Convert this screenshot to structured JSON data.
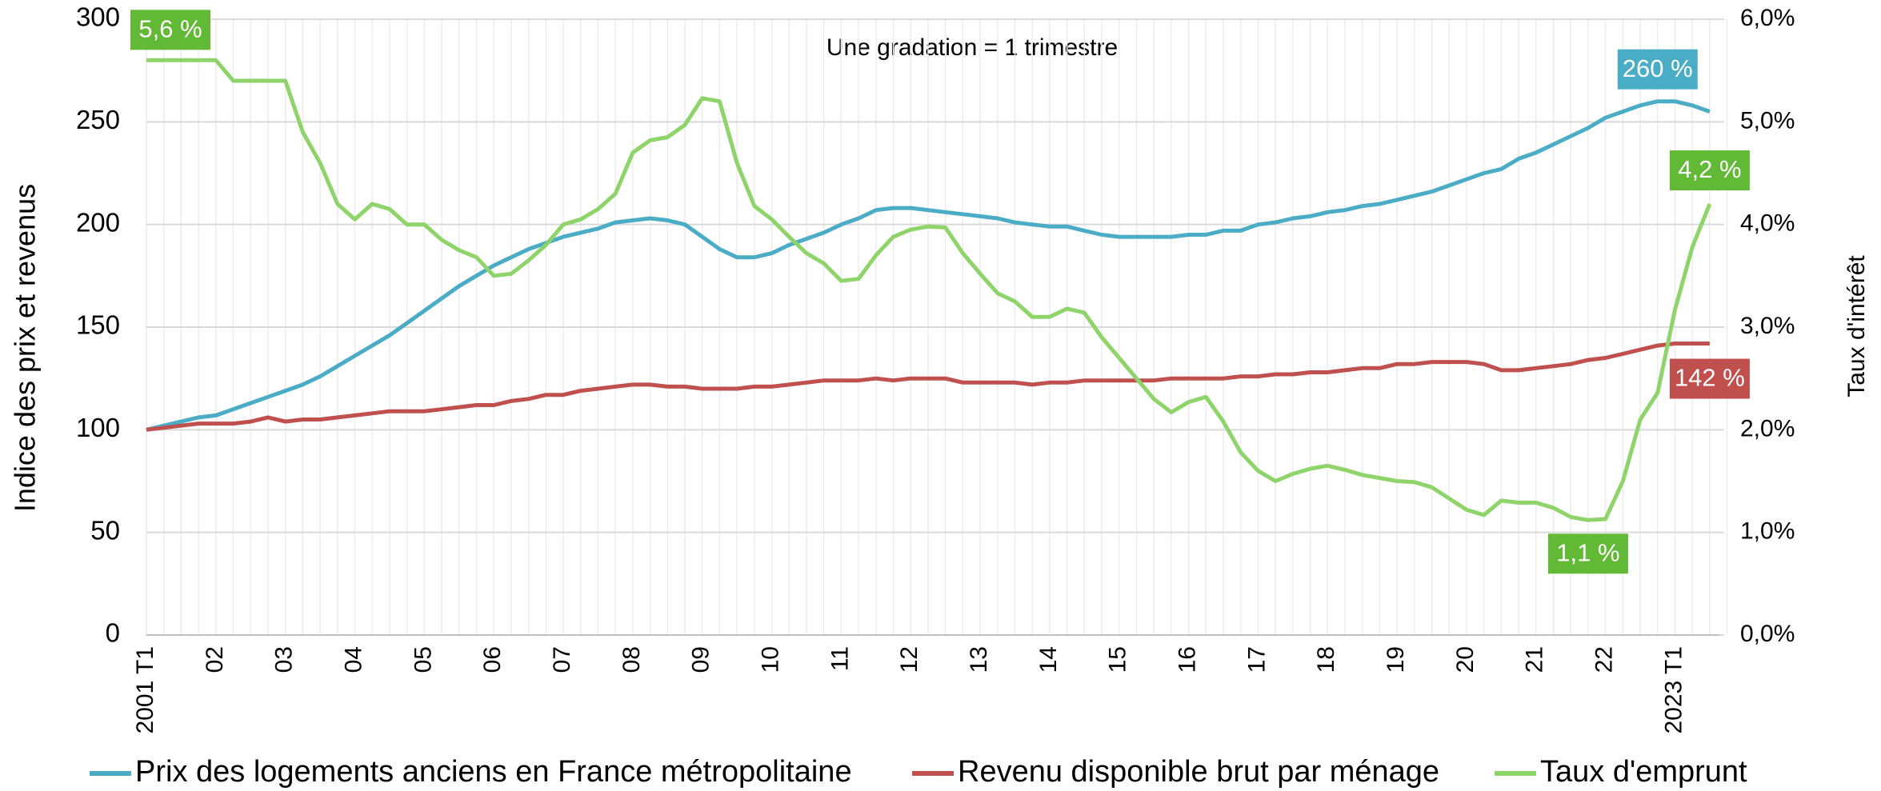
{
  "chart_data": {
    "type": "line",
    "annotation": "Une gradation = 1 trimestre",
    "ylabel": "Indice des prix et revenus",
    "y2label": "Taux d'intérêt",
    "categories": [
      "2001 T1",
      null,
      null,
      null,
      "02",
      null,
      null,
      null,
      "03",
      null,
      null,
      null,
      "04",
      null,
      null,
      null,
      "05",
      null,
      null,
      null,
      "06",
      null,
      null,
      null,
      "07",
      null,
      null,
      null,
      "08",
      null,
      null,
      null,
      "09",
      null,
      null,
      null,
      "10",
      null,
      null,
      null,
      "11",
      null,
      null,
      null,
      "12",
      null,
      null,
      null,
      "13",
      null,
      null,
      null,
      "14",
      null,
      null,
      null,
      "15",
      null,
      null,
      null,
      "16",
      null,
      null,
      null,
      "17",
      null,
      null,
      null,
      "18",
      null,
      null,
      null,
      "19",
      null,
      null,
      null,
      "20",
      null,
      null,
      null,
      "21",
      null,
      null,
      null,
      "22",
      null,
      null,
      null,
      "2023 T1",
      null,
      null
    ],
    "ylim": [
      0,
      300
    ],
    "yticks": [
      0,
      50,
      100,
      150,
      200,
      250,
      300
    ],
    "y2lim": [
      0,
      6
    ],
    "y2ticks": [
      {
        "value": 0,
        "label": "0,0%"
      },
      {
        "value": 1,
        "label": "1,0%"
      },
      {
        "value": 2,
        "label": "2,0%"
      },
      {
        "value": 3,
        "label": "3,0%"
      },
      {
        "value": 4,
        "label": "4,0%"
      },
      {
        "value": 5,
        "label": "5,0%"
      },
      {
        "value": 6,
        "label": "6,0%"
      }
    ],
    "grid": true,
    "legend": "bottom",
    "series": [
      {
        "name": "Prix des logements anciens en France métropolitaine",
        "color": "#4bacc6",
        "label_color": "#4bacc6",
        "values": [
          100,
          102,
          104,
          106,
          107,
          110,
          113,
          116,
          119,
          122,
          126,
          131,
          136,
          141,
          146,
          152,
          158,
          164,
          170,
          175,
          180,
          184,
          188,
          191,
          194,
          196,
          198,
          201,
          202,
          203,
          202,
          200,
          194,
          188,
          184,
          184,
          186,
          190,
          193,
          196,
          200,
          203,
          207,
          208,
          208,
          207,
          206,
          205,
          204,
          203,
          201,
          200,
          199,
          199,
          197,
          195,
          194,
          194,
          194,
          194,
          195,
          195,
          197,
          197,
          200,
          201,
          203,
          204,
          206,
          207,
          209,
          210,
          212,
          214,
          216,
          219,
          222,
          225,
          227,
          232,
          235,
          239,
          243,
          247,
          252,
          255,
          258,
          260,
          260,
          258,
          255
        ],
        "value_labels": [
          null,
          null,
          null,
          null,
          null,
          null,
          null,
          null,
          null,
          null,
          null,
          null,
          null,
          null,
          null,
          null,
          null,
          null,
          null,
          null,
          null,
          null,
          null,
          null,
          null,
          null,
          null,
          null,
          null,
          null,
          null,
          null,
          null,
          null,
          null,
          null,
          null,
          null,
          null,
          null,
          null,
          null,
          null,
          null,
          null,
          null,
          null,
          null,
          null,
          null,
          null,
          null,
          null,
          null,
          null,
          null,
          null,
          null,
          null,
          null,
          null,
          null,
          null,
          null,
          null,
          null,
          null,
          null,
          null,
          null,
          null,
          null,
          null,
          null,
          null,
          null,
          null,
          null,
          null,
          null,
          null,
          null,
          null,
          null,
          null,
          null,
          null,
          "260 %",
          null,
          null,
          null
        ]
      },
      {
        "name": "Revenu disponible brut par ménage",
        "color": "#c0504d",
        "label_color": "#c0504d",
        "values": [
          100,
          101,
          102,
          103,
          103,
          103,
          104,
          106,
          104,
          105,
          105,
          106,
          107,
          108,
          109,
          109,
          109,
          110,
          111,
          112,
          112,
          114,
          115,
          117,
          117,
          119,
          120,
          121,
          122,
          122,
          121,
          121,
          120,
          120,
          120,
          121,
          121,
          122,
          123,
          124,
          124,
          124,
          125,
          124,
          125,
          125,
          125,
          123,
          123,
          123,
          123,
          122,
          123,
          123,
          124,
          124,
          124,
          124,
          124,
          125,
          125,
          125,
          125,
          126,
          126,
          127,
          127,
          128,
          128,
          129,
          130,
          130,
          132,
          132,
          133,
          133,
          133,
          132,
          129,
          129,
          130,
          131,
          132,
          134,
          135,
          137,
          139,
          141,
          142,
          142,
          142
        ],
        "value_labels": [
          null,
          null,
          null,
          null,
          null,
          null,
          null,
          null,
          null,
          null,
          null,
          null,
          null,
          null,
          null,
          null,
          null,
          null,
          null,
          null,
          null,
          null,
          null,
          null,
          null,
          null,
          null,
          null,
          null,
          null,
          null,
          null,
          null,
          null,
          null,
          null,
          null,
          null,
          null,
          null,
          null,
          null,
          null,
          null,
          null,
          null,
          null,
          null,
          null,
          null,
          null,
          null,
          null,
          null,
          null,
          null,
          null,
          null,
          null,
          null,
          null,
          null,
          null,
          null,
          null,
          null,
          null,
          null,
          null,
          null,
          null,
          null,
          null,
          null,
          null,
          null,
          null,
          null,
          null,
          null,
          null,
          null,
          null,
          null,
          null,
          null,
          null,
          null,
          null,
          null,
          "142 %"
        ]
      },
      {
        "name": "Taux d'emprunt",
        "color": "#8ed46a",
        "label_color": "#62b935",
        "axis": "y2",
        "values": [
          5.6,
          5.6,
          5.6,
          5.6,
          5.6,
          5.4,
          5.4,
          5.4,
          5.4,
          4.9,
          4.6,
          4.2,
          4.05,
          4.2,
          4.15,
          4.0,
          4.0,
          3.85,
          3.75,
          3.68,
          3.5,
          3.52,
          3.65,
          3.8,
          4.0,
          4.05,
          4.15,
          4.3,
          4.7,
          4.82,
          4.85,
          4.97,
          5.23,
          5.2,
          4.6,
          4.18,
          4.05,
          3.88,
          3.72,
          3.62,
          3.45,
          3.47,
          3.7,
          3.88,
          3.95,
          3.98,
          3.97,
          3.72,
          3.52,
          3.33,
          3.25,
          3.1,
          3.1,
          3.18,
          3.14,
          2.9,
          2.7,
          2.5,
          2.3,
          2.17,
          2.27,
          2.32,
          2.08,
          1.78,
          1.6,
          1.5,
          1.57,
          1.62,
          1.65,
          1.61,
          1.56,
          1.53,
          1.5,
          1.49,
          1.44,
          1.33,
          1.22,
          1.17,
          1.31,
          1.29,
          1.29,
          1.24,
          1.15,
          1.12,
          1.13,
          1.5,
          2.1,
          2.36,
          3.17,
          3.78,
          4.2
        ],
        "value_labels": [
          "5,6 %",
          null,
          null,
          null,
          null,
          null,
          null,
          null,
          null,
          null,
          null,
          null,
          null,
          null,
          null,
          null,
          null,
          null,
          null,
          null,
          null,
          null,
          null,
          null,
          null,
          null,
          null,
          null,
          null,
          null,
          null,
          null,
          null,
          null,
          null,
          null,
          null,
          null,
          null,
          null,
          null,
          null,
          null,
          null,
          null,
          null,
          null,
          null,
          null,
          null,
          null,
          null,
          null,
          null,
          null,
          null,
          null,
          null,
          null,
          null,
          null,
          null,
          null,
          null,
          null,
          null,
          null,
          null,
          null,
          null,
          null,
          null,
          null,
          null,
          null,
          null,
          null,
          null,
          null,
          null,
          null,
          null,
          null,
          "1,1 %",
          null,
          null,
          null,
          null,
          null,
          null,
          "4,2 %"
        ]
      }
    ]
  }
}
